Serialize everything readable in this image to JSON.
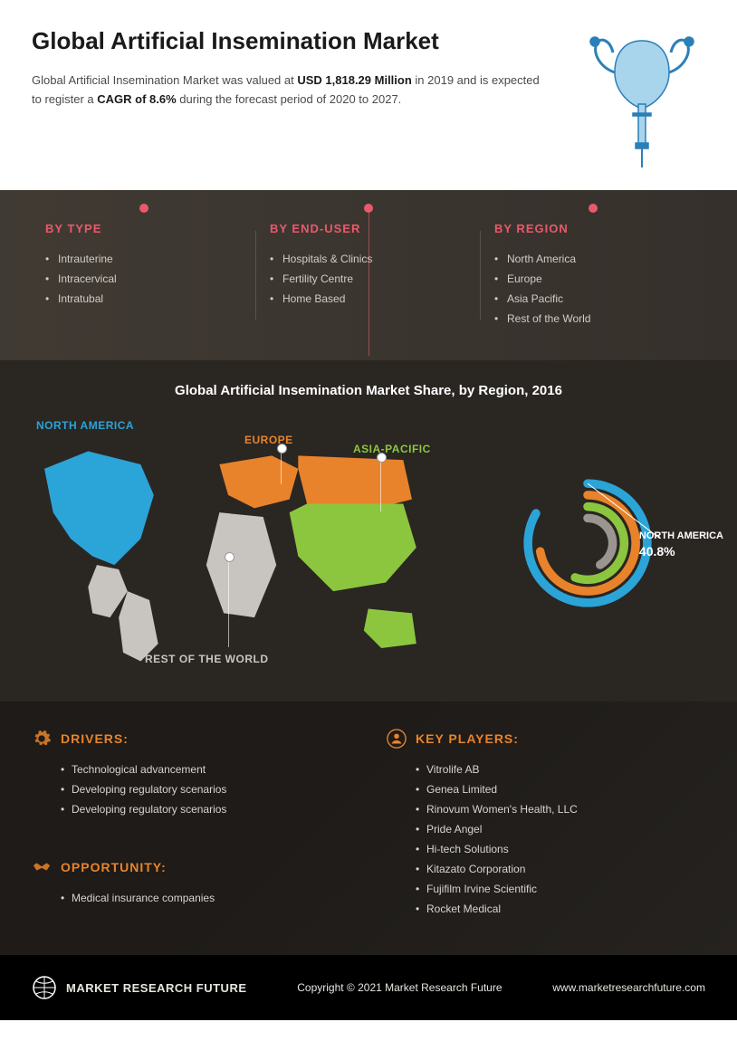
{
  "header": {
    "title": "Global Artificial Insemination Market",
    "intro_pre": "Global Artificial Insemination Market was valued at ",
    "valuation": "USD 1,818.29 Million",
    "intro_mid": " in 2019 and is expected to register a ",
    "cagr": "CAGR of 8.6%",
    "intro_post": " during the forecast period of 2020 to 2027."
  },
  "hero_icon": {
    "stroke": "#2b7fb8",
    "fill": "#5aa8d6"
  },
  "segments": {
    "accent": "#e85a6b",
    "columns": [
      {
        "title": "BY TYPE",
        "items": [
          "Intrauterine",
          "Intracervical",
          "Intratubal"
        ]
      },
      {
        "title": "BY END-USER",
        "items": [
          "Hospitals & Clinics",
          "Fertility Centre",
          "Home Based"
        ]
      },
      {
        "title": "BY REGION",
        "items": [
          "North America",
          "Europe",
          "Asia Pacific",
          "Rest of the World"
        ]
      }
    ]
  },
  "map": {
    "title": "Global Artificial Insemination Market Share, by Region, 2016",
    "regions": [
      {
        "name": "NORTH AMERICA",
        "color": "#2ba4d8"
      },
      {
        "name": "EUROPE",
        "color": "#e8832b"
      },
      {
        "name": "ASIA-PACIFIC",
        "color": "#8cc63f"
      },
      {
        "name": "REST OF THE WORLD",
        "color": "#c8c5c0"
      }
    ],
    "donut": {
      "highlight_region": "NORTH AMERICA",
      "highlight_pct": "40.8%",
      "rings": [
        {
          "color": "#2ba4d8",
          "span": 300,
          "r": 62
        },
        {
          "color": "#e8832b",
          "span": 260,
          "r": 50
        },
        {
          "color": "#8cc63f",
          "span": 200,
          "r": 38
        },
        {
          "color": "#9a958f",
          "span": 150,
          "r": 26
        }
      ],
      "stroke_width": 9,
      "bg": "#2a2622"
    }
  },
  "bottom": {
    "accent": "#e8832b",
    "drivers": {
      "title": "DRIVERS:",
      "items": [
        "Technological advancement",
        "Developing regulatory scenarios",
        "Developing regulatory scenarios"
      ]
    },
    "opportunity": {
      "title": "OPPORTUNITY:",
      "items": [
        "Medical insurance companies"
      ]
    },
    "players": {
      "title": "KEY PLAYERS:",
      "items": [
        "Vitrolife AB",
        "Genea Limited",
        "Rinovum Women's Health, LLC",
        "Pride Angel",
        "Hi-tech Solutions",
        "Kitazato Corporation",
        "Fujifilm Irvine Scientific",
        " Rocket Medical"
      ]
    }
  },
  "footer": {
    "brand": "MARKET RESEARCH FUTURE",
    "copyright": "Copyright © 2021 Market Research Future",
    "url": "www.marketresearchfuture.com"
  }
}
